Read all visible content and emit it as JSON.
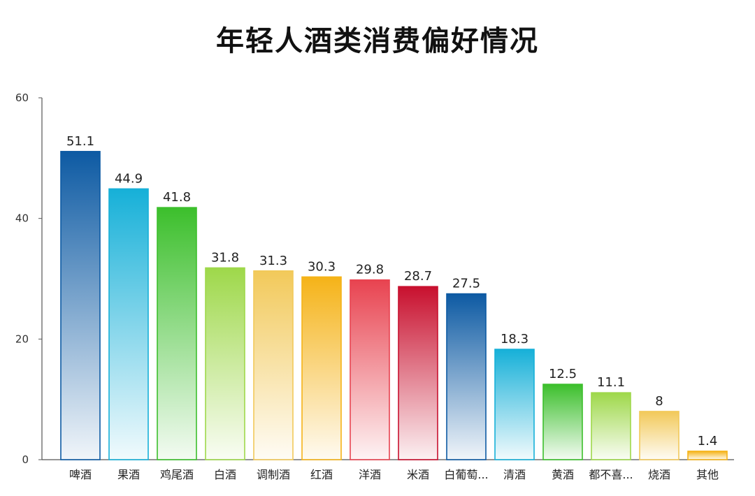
{
  "chart_data": {
    "type": "bar",
    "title": "年轻人酒类消费偏好情况",
    "xlabel": "",
    "ylabel": "",
    "ylim": [
      0,
      60
    ],
    "yticks": [
      0,
      20,
      40,
      60
    ],
    "grid": false,
    "legend": "none",
    "categories": [
      "啤酒",
      "果酒",
      "鸡尾酒",
      "白酒",
      "调制酒",
      "红酒",
      "洋酒",
      "米酒",
      "白葡萄...",
      "清酒",
      "黄酒",
      "都不喜...",
      "烧酒",
      "其他"
    ],
    "values": [
      51.1,
      44.9,
      41.8,
      31.8,
      31.3,
      30.3,
      29.8,
      28.7,
      27.5,
      18.3,
      12.5,
      11.1,
      8,
      1.4
    ],
    "data_labels": [
      "51.1",
      "44.9",
      "41.8",
      "31.8",
      "31.3",
      "30.3",
      "29.8",
      "28.7",
      "27.5",
      "18.3",
      "12.5",
      "11.1",
      "8",
      "1.4"
    ],
    "colors": [
      "#0d5aa3",
      "#16b0d8",
      "#3cbf2c",
      "#9ed84a",
      "#f2c95a",
      "#f5b318",
      "#e84350",
      "#c8102e",
      "#0d5aa3",
      "#16b0d8",
      "#3cbf2c",
      "#9ed84a",
      "#f2c95a",
      "#f5b318"
    ]
  }
}
